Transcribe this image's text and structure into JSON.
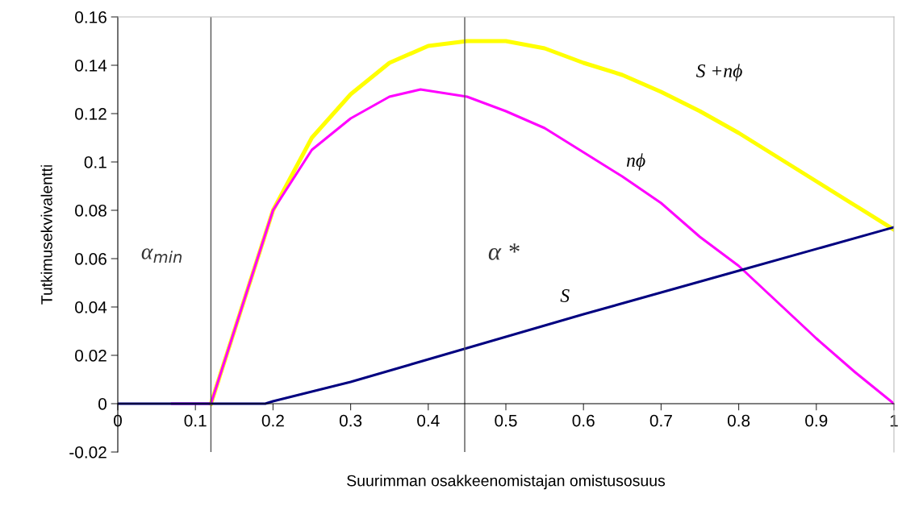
{
  "chart_data": {
    "type": "line",
    "xlabel": "Suurimman osakkeenomistajan omistusosuus",
    "ylabel": "Tutkimusekvivalentti",
    "xlim": [
      0,
      1
    ],
    "xticks": [
      0,
      0.1,
      0.2,
      0.3,
      0.4,
      0.5,
      0.6,
      0.7,
      0.8,
      0.9,
      1
    ],
    "ylim": [
      -0.02,
      0.16
    ],
    "yticks": [
      -0.02,
      0,
      0.02,
      0.04,
      0.06,
      0.08,
      0.1,
      0.12,
      0.14,
      0.16
    ],
    "grid": false,
    "legend": false,
    "marker": "none",
    "line_style": "solid",
    "series": [
      {
        "name": "S +nϕ",
        "color": "#ffff00",
        "x": [
          0.12,
          0.2,
          0.25,
          0.3,
          0.35,
          0.4,
          0.45,
          0.5,
          0.55,
          0.6,
          0.65,
          0.7,
          0.75,
          0.8,
          0.85,
          0.9,
          0.95,
          1.0
        ],
        "values": [
          0,
          0.08,
          0.11,
          0.128,
          0.141,
          0.148,
          0.15,
          0.15,
          0.147,
          0.141,
          0.136,
          0.129,
          0.121,
          0.112,
          0.102,
          0.092,
          0.082,
          0.072
        ]
      },
      {
        "name": "nϕ",
        "color": "#ff00ff",
        "x": [
          0.07,
          0.12,
          0.2,
          0.25,
          0.3,
          0.35,
          0.39,
          0.45,
          0.5,
          0.55,
          0.6,
          0.65,
          0.7,
          0.75,
          0.8,
          0.85,
          0.9,
          0.95,
          1.0
        ],
        "values": [
          0,
          0,
          0.08,
          0.105,
          0.118,
          0.127,
          0.13,
          0.127,
          0.121,
          0.114,
          0.104,
          0.094,
          0.083,
          0.069,
          0.057,
          0.042,
          0.027,
          0.013,
          0
        ]
      },
      {
        "name": "S",
        "color": "#000080",
        "x": [
          0,
          0.19,
          0.2,
          0.3,
          0.45,
          0.6,
          0.8,
          1.0
        ],
        "values": [
          0,
          0,
          0.001,
          0.009,
          0.023,
          0.037,
          0.055,
          0.073
        ]
      }
    ],
    "ref_lines": [
      {
        "axis": "x",
        "value": 0.12,
        "label": "α$_{min}$",
        "color": "#555555"
      },
      {
        "axis": "x",
        "value": 0.447,
        "label": "α *",
        "color": "#555555"
      }
    ]
  }
}
